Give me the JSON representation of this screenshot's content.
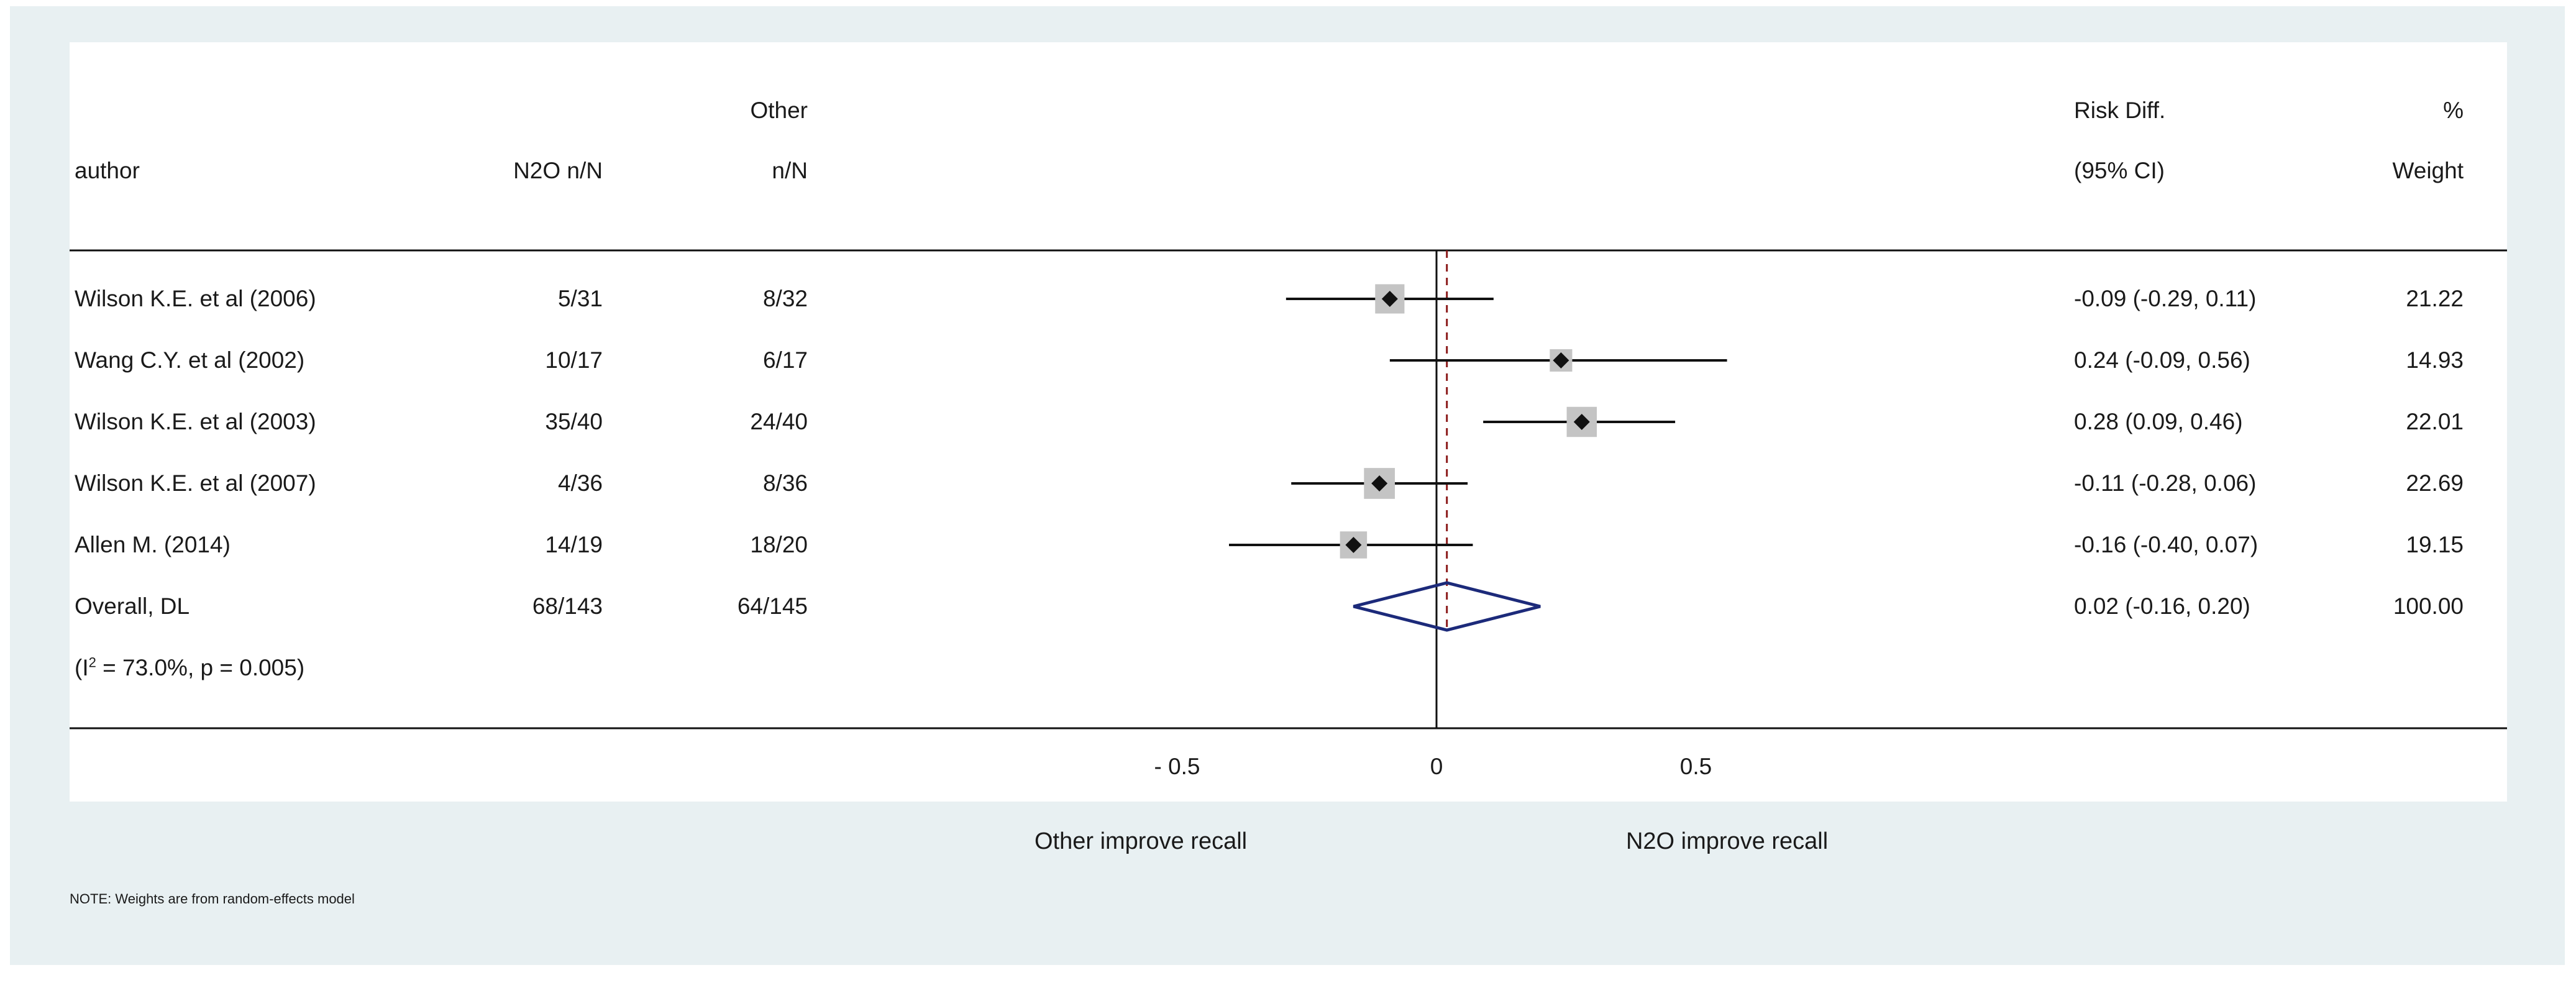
{
  "chart_data": {
    "type": "forest",
    "headers": {
      "author": "author",
      "treat_col": "N2O n/N",
      "control_top": "Other",
      "control_col": "n/N",
      "effect_top": "Risk Diff.",
      "effect_col": "(95% CI)",
      "weight_top": "%",
      "weight_col": "Weight"
    },
    "studies": [
      {
        "author": "Wilson K.E. et al (2006)",
        "treat": "5/31",
        "control": "8/32",
        "rd": -0.09,
        "lo": -0.29,
        "hi": 0.11,
        "ci_text": "-0.09 (-0.29, 0.11)",
        "weight": "21.22"
      },
      {
        "author": "Wang C.Y. et al (2002)",
        "treat": "10/17",
        "control": "6/17",
        "rd": 0.24,
        "lo": -0.09,
        "hi": 0.56,
        "ci_text": "0.24 (-0.09, 0.56)",
        "weight": "14.93"
      },
      {
        "author": "Wilson K.E. et al (2003)",
        "treat": "35/40",
        "control": "24/40",
        "rd": 0.28,
        "lo": 0.09,
        "hi": 0.46,
        "ci_text": "0.28 (0.09, 0.46)",
        "weight": "22.01"
      },
      {
        "author": "Wilson K.E. et al (2007)",
        "treat": "4/36",
        "control": "8/36",
        "rd": -0.11,
        "lo": -0.28,
        "hi": 0.06,
        "ci_text": "-0.11 (-0.28, 0.06)",
        "weight": "22.69"
      },
      {
        "author": "Allen M. (2014)",
        "treat": "14/19",
        "control": "18/20",
        "rd": -0.16,
        "lo": -0.4,
        "hi": 0.07,
        "ci_text": "-0.16 (-0.40, 0.07)",
        "weight": "19.15"
      }
    ],
    "overall": {
      "author": "Overall, DL",
      "treat": "68/143",
      "control": "64/145",
      "rd": 0.02,
      "lo": -0.16,
      "hi": 0.2,
      "ci_text": "0.02 (-0.16, 0.20)",
      "weight": "100.00"
    },
    "heterogeneity": {
      "prefix": "(I",
      "sup": "2",
      "suffix": " = 73.0%, p = 0.005)"
    },
    "x_ticks": [
      {
        "value": -0.5,
        "label": "- 0.5"
      },
      {
        "value": 0,
        "label": "0"
      },
      {
        "value": 0.5,
        "label": "0.5"
      }
    ],
    "x_range": [
      -1.0,
      1.1
    ],
    "null_line": 0,
    "xlabel_left": "Other improve recall",
    "xlabel_right": "N2O improve recall",
    "note": "NOTE: Weights are from random-effects model"
  },
  "colors": {
    "background": "#e8f0f2",
    "panel": "#ffffff",
    "line": "#111111",
    "overall_diamond": "#1c2a7a",
    "overall_line": "#8b1a1a",
    "weight_box": "#c4c4c4"
  }
}
